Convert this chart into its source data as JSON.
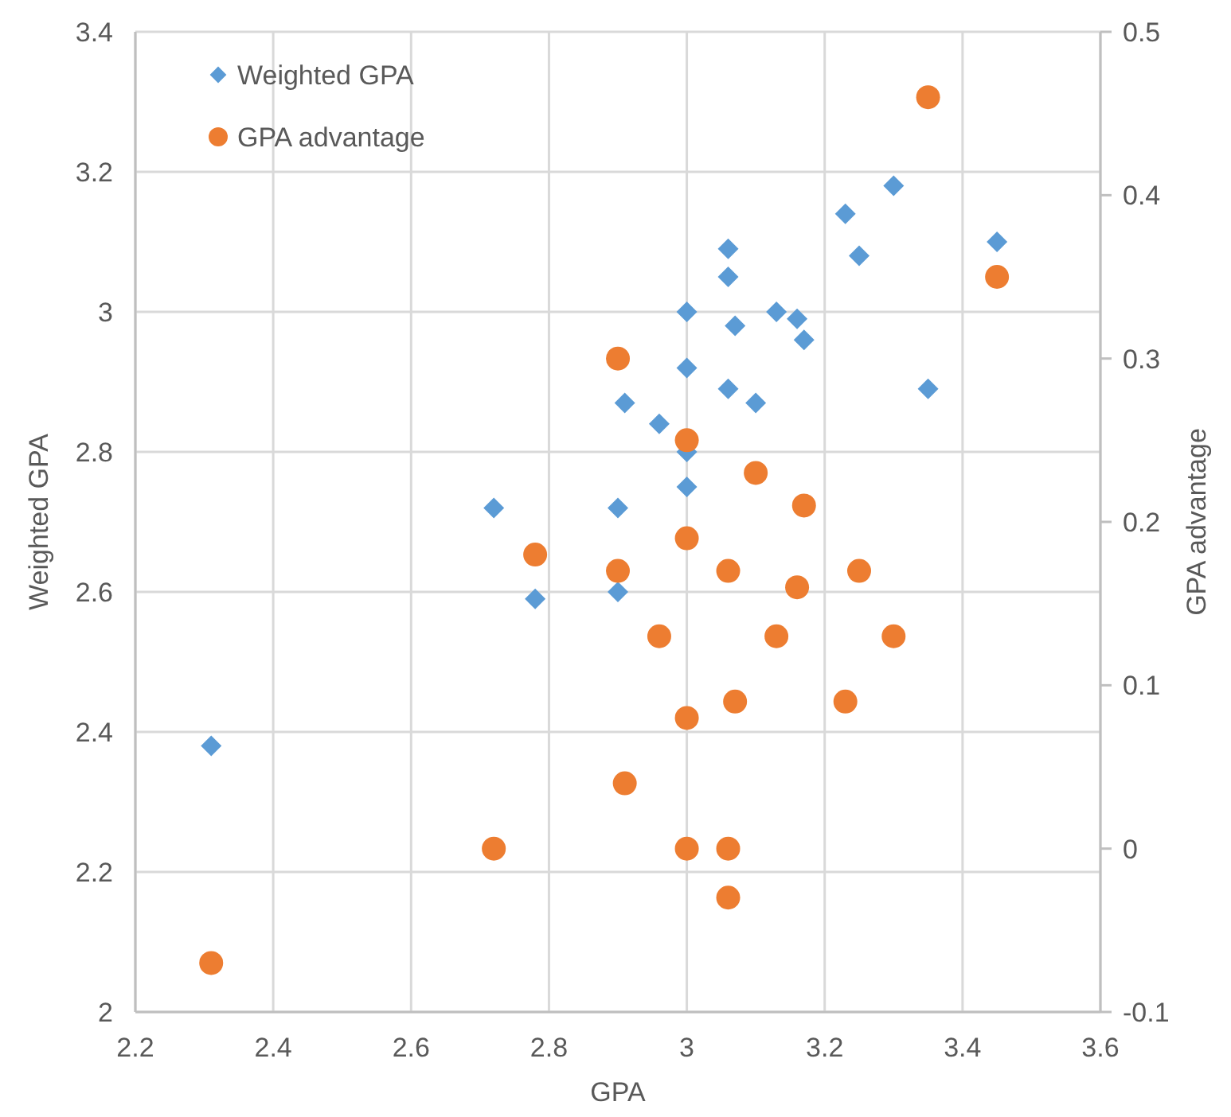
{
  "chart_data": {
    "type": "scatter",
    "xlabel": "GPA",
    "ylabel": "Weighted GPA",
    "y2label": "GPA advantage",
    "xlim": [
      2.2,
      3.6
    ],
    "xticks": [
      {
        "value": 2.2,
        "label": "2.2"
      },
      {
        "value": 2.4,
        "label": "2.4"
      },
      {
        "value": 2.6,
        "label": "2.6"
      },
      {
        "value": 2.8,
        "label": "2.8"
      },
      3,
      {
        "value": 3.2,
        "label": "3.2"
      },
      {
        "value": 3.4,
        "label": "3.4"
      },
      {
        "value": 3.6,
        "label": "3.6"
      }
    ],
    "ylim": [
      2,
      3.4
    ],
    "yticks": [
      2,
      {
        "value": 2.2,
        "label": "2.2"
      },
      {
        "value": 2.4,
        "label": "2.4"
      },
      {
        "value": 2.6,
        "label": "2.6"
      },
      {
        "value": 2.8,
        "label": "2.8"
      },
      3,
      {
        "value": 3.2,
        "label": "3.2"
      },
      {
        "value": 3.4,
        "label": "3.4"
      }
    ],
    "y2lim": [
      -0.1,
      0.5
    ],
    "y2ticks": [
      -0.1,
      0,
      0.1,
      0.2,
      0.3,
      0.4,
      0.5
    ],
    "grid": true,
    "legend": "top left",
    "series": [
      {
        "name": "Weighted GPA",
        "color": "#5b9bd5",
        "marker": "diamond",
        "x": [
          2.31,
          2.72,
          2.78,
          2.9,
          2.9,
          2.91,
          2.96,
          3,
          3,
          3,
          3,
          3.06,
          3.06,
          3.06,
          3.07,
          3.1,
          3.13,
          3.16,
          3.17,
          3.23,
          3.25,
          3.3,
          3.35,
          3.45
        ],
        "values": [
          2.38,
          2.72,
          2.59,
          2.72,
          2.6,
          2.87,
          2.84,
          3,
          2.92,
          2.8,
          2.75,
          3.09,
          3.05,
          2.89,
          2.98,
          2.87,
          3,
          2.99,
          2.96,
          3.14,
          3.08,
          3.18,
          2.89,
          3.1
        ]
      },
      {
        "name": "GPA advantage",
        "color": "#ed7d31",
        "marker": "circle",
        "axis": "y2",
        "x": [
          2.31,
          2.72,
          2.78,
          2.9,
          2.9,
          2.91,
          2.96,
          3,
          3,
          3,
          3,
          3.06,
          3.06,
          3.06,
          3.07,
          3.1,
          3.13,
          3.16,
          3.17,
          3.23,
          3.25,
          3.3,
          3.35,
          3.45
        ],
        "values": [
          -0.07,
          0,
          0.18,
          0.3,
          0.17,
          0.04,
          0.13,
          0.25,
          0.19,
          0.08,
          0,
          0.17,
          0,
          -0.03,
          0.09,
          0.23,
          0.13,
          0.16,
          0.21,
          0.09,
          0.17,
          0.13,
          0.46,
          0.35
        ]
      }
    ]
  }
}
